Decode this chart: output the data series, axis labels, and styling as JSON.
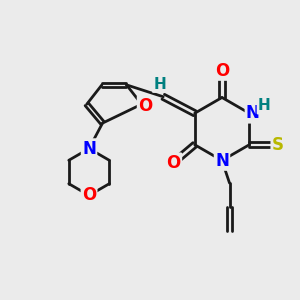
{
  "bg_color": "#ebebeb",
  "bond_color": "#1a1a1a",
  "bond_width": 2.0,
  "atom_colors": {
    "O": "#ff0000",
    "N": "#0000ff",
    "S": "#b8b800",
    "H": "#008080",
    "C": "#1a1a1a"
  },
  "font_size": 12,
  "fig_width": 3.0,
  "fig_height": 3.0,
  "dpi": 100
}
